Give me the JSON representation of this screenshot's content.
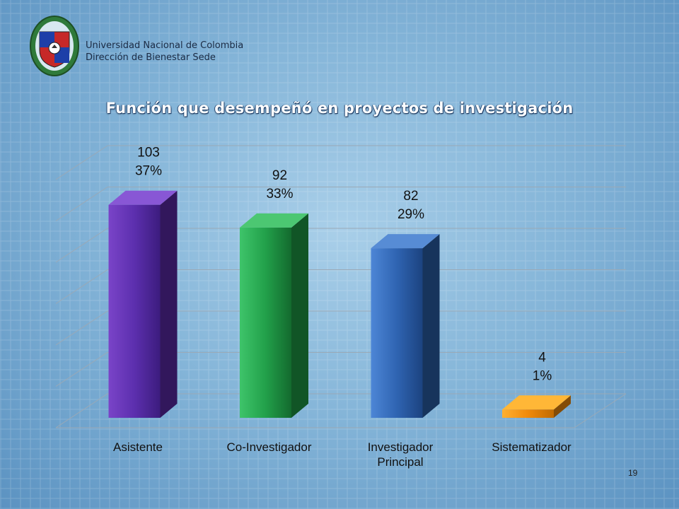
{
  "header": {
    "line1": "Universidad Nacional de Colombia",
    "line2": "Dirección de Bienestar Sede"
  },
  "page_number": "19",
  "chart_data": {
    "type": "bar",
    "title": "Función que desempeñó en proyectos de investigación",
    "categories": [
      "Asistente",
      "Co-Investigador",
      "Investigador Principal",
      "Sistematizador"
    ],
    "values": [
      103,
      92,
      82,
      4
    ],
    "percent_labels": [
      "37%",
      "33%",
      "29%",
      "1%"
    ],
    "ylim": [
      0,
      120
    ],
    "grid": true,
    "colors": [
      "#5b2aa8",
      "#1f9a45",
      "#2a5fa8",
      "#f08a0a"
    ]
  }
}
